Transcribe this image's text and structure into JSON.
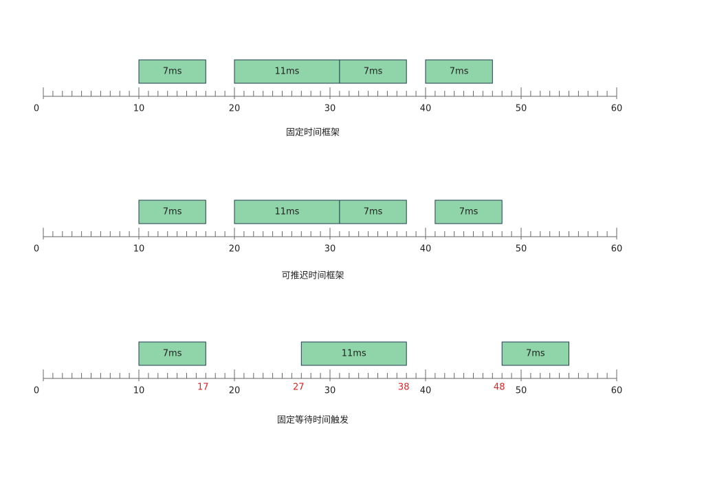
{
  "timelines": [
    {
      "axis": {
        "range": [
          0,
          60
        ],
        "ticks": [
          0,
          10,
          20,
          30,
          40,
          50,
          60
        ]
      },
      "blocks": [
        {
          "start": 10,
          "end": 17,
          "label": "7ms"
        },
        {
          "start": 20,
          "end": 31,
          "label": "11ms"
        },
        {
          "start": 31,
          "end": 38,
          "label": "7ms"
        },
        {
          "start": 40,
          "end": 47,
          "label": "7ms"
        }
      ],
      "caption": "固定时间框架"
    },
    {
      "axis": {
        "range": [
          0,
          60
        ],
        "ticks": [
          0,
          10,
          20,
          30,
          40,
          50,
          60
        ]
      },
      "blocks": [
        {
          "start": 10,
          "end": 17,
          "label": "7ms"
        },
        {
          "start": 20,
          "end": 31,
          "label": "11ms"
        },
        {
          "start": 31,
          "end": 38,
          "label": "7ms"
        },
        {
          "start": 41,
          "end": 48,
          "label": "7ms"
        }
      ],
      "caption": "可推迟时间框架"
    },
    {
      "axis": {
        "range": [
          0,
          60
        ],
        "ticks": [
          0,
          10,
          20,
          30,
          40,
          50,
          60
        ]
      },
      "blocks": [
        {
          "start": 10,
          "end": 17,
          "label": "7ms"
        },
        {
          "start": 27,
          "end": 38,
          "label": "11ms"
        },
        {
          "start": 48,
          "end": 55,
          "label": "7ms"
        }
      ],
      "markers": [
        17,
        27,
        38,
        48
      ],
      "caption": "固定等待时间触发"
    }
  ]
}
